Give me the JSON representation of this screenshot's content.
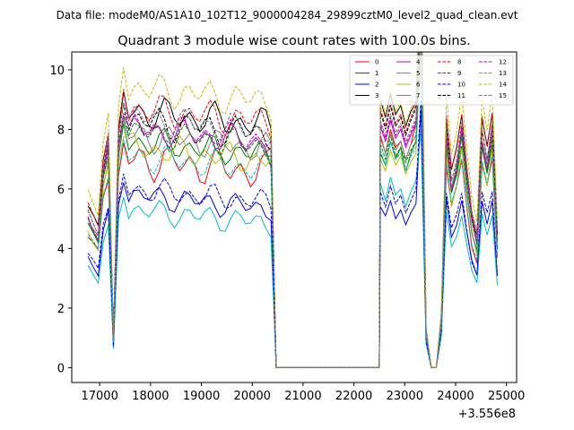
{
  "chart_data": {
    "type": "line",
    "suptitle": "Data file: modeM0/AS1A10_102T12_9000004284_29899cztM0_level2_quad_clean.evt",
    "title": "Quadrant 3 module wise count rates with 100.0s bins.",
    "xlabel": "",
    "ylabel": "",
    "x_offset_label": "+3.556e8",
    "xlim": [
      16450,
      25200
    ],
    "ylim": [
      -0.5,
      10.6
    ],
    "x_ticks": [
      17000,
      18000,
      19000,
      20000,
      21000,
      22000,
      23000,
      24000,
      25000
    ],
    "x_tick_labels": [
      "17000",
      "18000",
      "19000",
      "20000",
      "21000",
      "22000",
      "23000",
      "24000",
      "25000"
    ],
    "y_ticks": [
      0,
      2,
      4,
      6,
      8,
      10
    ],
    "y_tick_labels": [
      "0",
      "2",
      "4",
      "6",
      "8",
      "10"
    ],
    "legend_position": "top-right",
    "segments": [
      {
        "start": 16770,
        "step": 100,
        "count": 58
      },
      {
        "start": 22520,
        "step": 100,
        "count": 24
      }
    ],
    "series": [
      {
        "name": "0",
        "color": "#ff0000",
        "dash": false,
        "level": 7.0,
        "amp": 0.45,
        "phase": 0.3,
        "seg2": [
          7.8,
          7.2,
          8.0,
          7.4,
          7.6,
          7.0,
          7.5,
          8.2
        ]
      },
      {
        "name": "1",
        "color": "#008000",
        "dash": false,
        "level": 7.6,
        "amp": 0.35,
        "phase": 1.1,
        "seg2": [
          7.2,
          6.8,
          7.6,
          7.0,
          7.4,
          6.6,
          7.2,
          7.6
        ]
      },
      {
        "name": "2",
        "color": "#0000ff",
        "dash": false,
        "level": 5.8,
        "amp": 0.3,
        "phase": 2.0,
        "seg2": [
          5.4,
          5.1,
          5.6,
          5.0,
          5.3,
          4.8,
          5.2,
          5.5
        ]
      },
      {
        "name": "3",
        "color": "#000000",
        "dash": false,
        "level": 8.6,
        "amp": 0.4,
        "phase": 0.7,
        "seg2": [
          9.0,
          8.4,
          9.2,
          8.5,
          8.8,
          8.1,
          8.6,
          8.9
        ]
      },
      {
        "name": "4",
        "color": "#bf00bf",
        "dash": false,
        "level": 8.0,
        "amp": 0.35,
        "phase": 2.6,
        "seg2": [
          8.1,
          7.6,
          8.3,
          7.7,
          8.0,
          7.4,
          7.8,
          8.2
        ]
      },
      {
        "name": "5",
        "color": "#00bfbf",
        "dash": false,
        "level": 5.3,
        "amp": 0.3,
        "phase": 1.7,
        "seg2": [
          6.2,
          5.6,
          6.4,
          5.8,
          6.0,
          5.4,
          5.9,
          6.3
        ]
      },
      {
        "name": "6",
        "color": "#bfbf00",
        "dash": false,
        "level": 7.4,
        "amp": 0.35,
        "phase": 3.1,
        "seg2": [
          7.0,
          6.6,
          7.3,
          6.8,
          7.1,
          6.5,
          6.9,
          7.2
        ]
      },
      {
        "name": "7",
        "color": "#808080",
        "dash": false,
        "level": 7.8,
        "amp": 0.35,
        "phase": 0.2,
        "seg2": [
          7.7,
          7.2,
          7.9,
          7.3,
          7.6,
          7.0,
          7.5,
          7.8
        ]
      },
      {
        "name": "8",
        "color": "#ff0000",
        "dash": true,
        "level": 8.7,
        "amp": 0.4,
        "phase": 1.4,
        "seg2": [
          8.7,
          8.1,
          8.9,
          8.2,
          8.5,
          7.9,
          8.4,
          8.8
        ]
      },
      {
        "name": "9",
        "color": "#008000",
        "dash": true,
        "level": 7.9,
        "amp": 0.35,
        "phase": 2.3,
        "seg2": [
          7.5,
          7.0,
          7.8,
          7.1,
          7.4,
          6.9,
          7.3,
          7.6
        ]
      },
      {
        "name": "10",
        "color": "#0000ff",
        "dash": true,
        "level": 6.0,
        "amp": 0.3,
        "phase": 0.9,
        "seg2": [
          5.9,
          5.4,
          6.1,
          5.5,
          5.8,
          5.2,
          5.6,
          6.0
        ]
      },
      {
        "name": "11",
        "color": "#000000",
        "dash": true,
        "level": 8.3,
        "amp": 0.4,
        "phase": 1.9,
        "seg2": [
          8.6,
          8.0,
          8.8,
          8.1,
          8.4,
          7.8,
          8.3,
          8.7
        ]
      },
      {
        "name": "12",
        "color": "#bf00bf",
        "dash": true,
        "level": 8.1,
        "amp": 0.35,
        "phase": 2.8,
        "seg2": [
          8.2,
          7.7,
          8.4,
          7.8,
          8.1,
          7.5,
          7.9,
          8.3
        ]
      },
      {
        "name": "13",
        "color": "#00bfbf",
        "dash": true,
        "level": 7.1,
        "amp": 0.35,
        "phase": 0.5,
        "seg2": [
          7.3,
          6.8,
          7.6,
          7.0,
          7.2,
          6.6,
          7.1,
          7.4
        ]
      },
      {
        "name": "14",
        "color": "#bfbf00",
        "dash": true,
        "level": 9.4,
        "amp": 0.4,
        "phase": 1.6,
        "seg2": [
          9.1,
          8.5,
          9.3,
          8.6,
          8.9,
          8.2,
          8.7,
          9.0
        ]
      },
      {
        "name": "15",
        "color": "#808080",
        "dash": true,
        "level": 8.4,
        "amp": 0.35,
        "phase": 2.4,
        "seg2": [
          8.3,
          7.8,
          8.5,
          7.9,
          8.2,
          7.6,
          8.0,
          8.4
        ]
      }
    ]
  }
}
